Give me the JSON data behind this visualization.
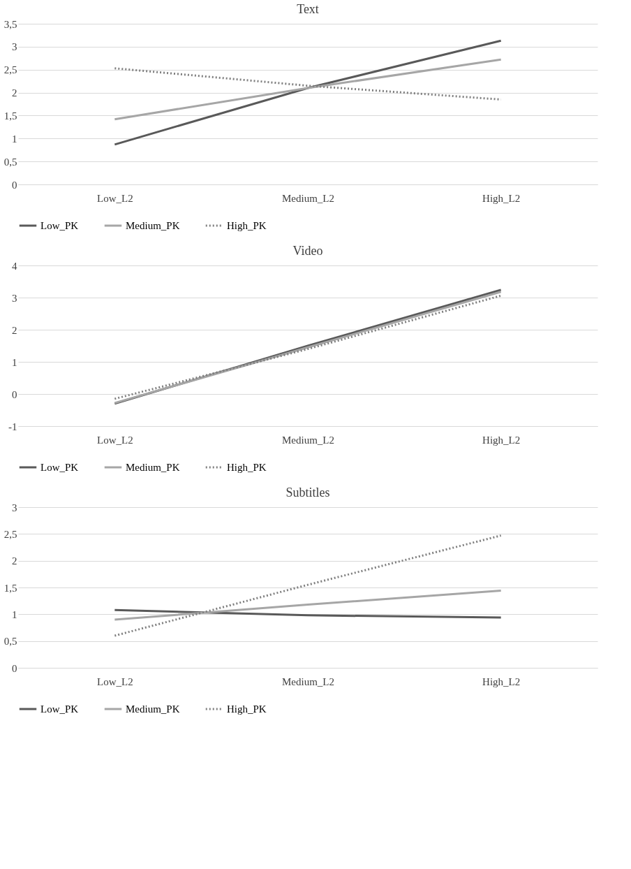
{
  "chart_data": [
    {
      "type": "line",
      "title": "Text",
      "categories": [
        "Low_L2",
        "Medium_L2",
        "High_L2"
      ],
      "series": [
        {
          "name": "Low_PK",
          "color": "#595959",
          "line_style": "solid",
          "values": [
            0.87,
            2.1,
            3.13
          ]
        },
        {
          "name": "Medium_PK",
          "color": "#a6a6a6",
          "line_style": "solid",
          "values": [
            1.42,
            2.1,
            2.72
          ]
        },
        {
          "name": "High_PK",
          "color": "#7f7f7f",
          "line_style": "dotted",
          "values": [
            2.53,
            2.15,
            1.85
          ]
        }
      ],
      "ylim": [
        0,
        3.5
      ],
      "yticks": [
        0,
        {
          "value": 0.5,
          "label": "0,5"
        },
        1,
        {
          "value": 1.5,
          "label": "1,5"
        },
        2,
        {
          "value": 2.5,
          "label": "2,5"
        },
        3,
        {
          "value": 3.5,
          "label": "3,5"
        }
      ],
      "grid": "y",
      "legend": "bottom"
    },
    {
      "type": "line",
      "title": "Video",
      "categories": [
        "Low_L2",
        "Medium_L2",
        "High_L2"
      ],
      "series": [
        {
          "name": "Low_PK",
          "color": "#595959",
          "line_style": "solid",
          "values": [
            -0.3,
            1.5,
            3.24
          ]
        },
        {
          "name": "Medium_PK",
          "color": "#a6a6a6",
          "line_style": "solid",
          "values": [
            -0.28,
            1.45,
            3.18
          ]
        },
        {
          "name": "High_PK",
          "color": "#7f7f7f",
          "line_style": "dotted",
          "values": [
            -0.15,
            1.4,
            3.06
          ]
        }
      ],
      "ylim": [
        -1,
        4
      ],
      "yticks": [
        -1,
        0,
        1,
        2,
        3,
        4
      ],
      "grid": "y",
      "legend": "bottom"
    },
    {
      "type": "line",
      "title": "Subtitles",
      "categories": [
        "Low_L2",
        "Medium_L2",
        "High_L2"
      ],
      "series": [
        {
          "name": "Low_PK",
          "color": "#595959",
          "line_style": "solid",
          "values": [
            1.08,
            0.98,
            0.94
          ]
        },
        {
          "name": "Medium_PK",
          "color": "#a6a6a6",
          "line_style": "solid",
          "values": [
            0.9,
            1.18,
            1.44
          ]
        },
        {
          "name": "High_PK",
          "color": "#7f7f7f",
          "line_style": "dotted",
          "values": [
            0.6,
            1.55,
            2.47
          ]
        }
      ],
      "ylim": [
        0,
        3
      ],
      "yticks": [
        0,
        {
          "value": 0.5,
          "label": "0,5"
        },
        1,
        {
          "value": 1.5,
          "label": "1,5"
        },
        2,
        {
          "value": 2.5,
          "label": "2,5"
        },
        3
      ],
      "grid": "y",
      "legend": "bottom"
    }
  ]
}
